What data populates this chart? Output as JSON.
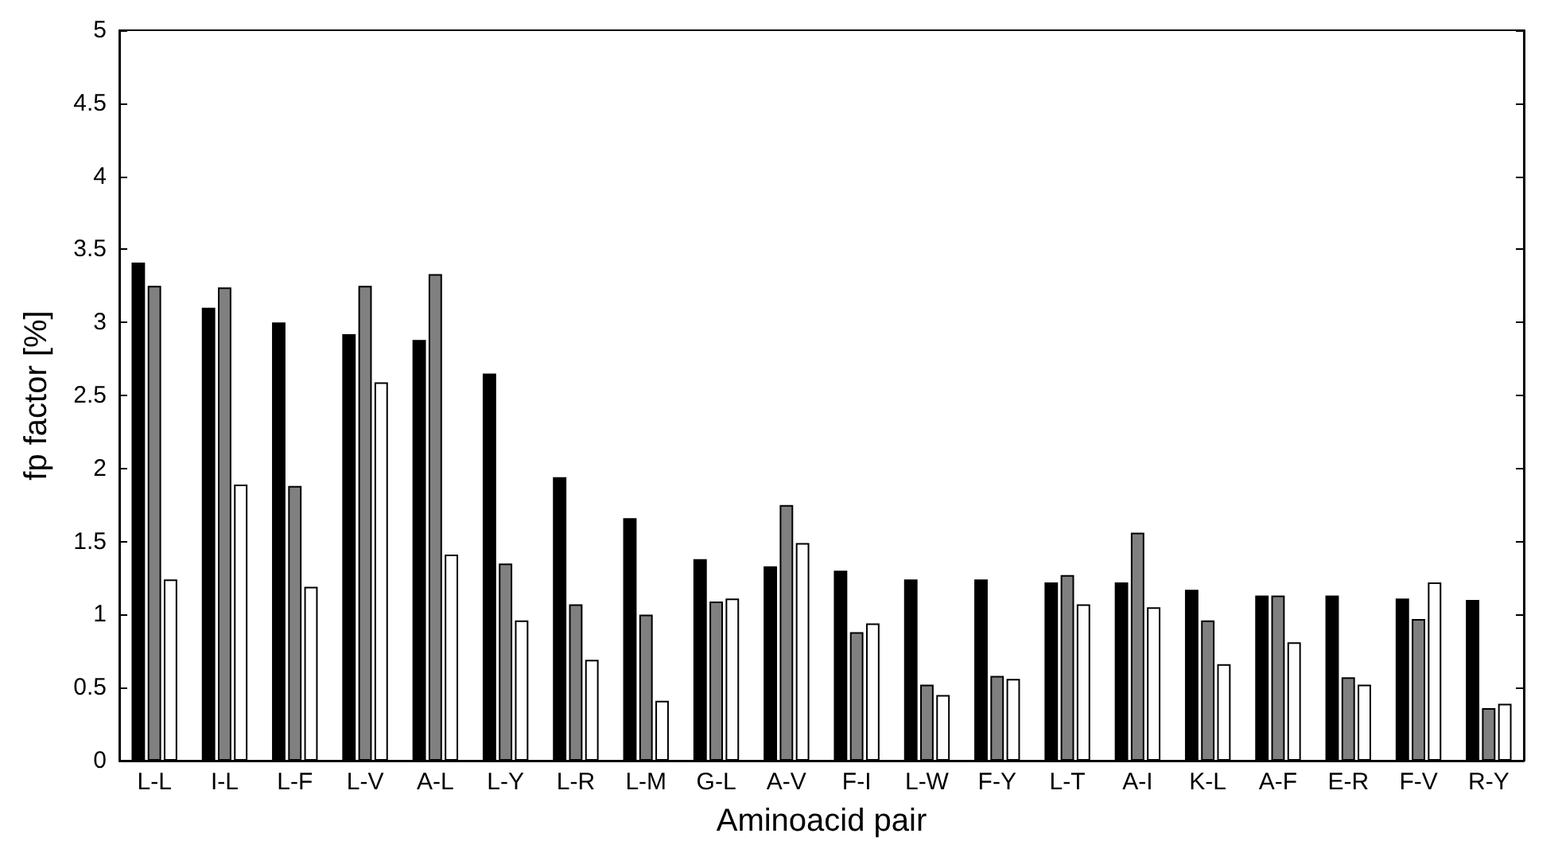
{
  "chart_data": {
    "type": "bar",
    "xlabel": "Aminoacid pair",
    "ylabel": "fp factor [%]",
    "categories": [
      "L-L",
      "I-L",
      "L-F",
      "L-V",
      "A-L",
      "L-Y",
      "L-R",
      "L-M",
      "G-L",
      "A-V",
      "F-I",
      "L-W",
      "F-Y",
      "L-T",
      "A-I",
      "K-L",
      "A-F",
      "E-R",
      "F-V",
      "R-Y"
    ],
    "series": [
      {
        "color": "#000000",
        "values": [
          3.41,
          3.1,
          3.0,
          2.92,
          2.88,
          2.65,
          1.94,
          1.66,
          1.38,
          1.33,
          1.3,
          1.24,
          1.24,
          1.22,
          1.22,
          1.17,
          1.13,
          1.13,
          1.11,
          1.1
        ]
      },
      {
        "color": "#808080",
        "values": [
          3.25,
          3.24,
          1.88,
          3.25,
          3.33,
          1.35,
          1.07,
          1.0,
          1.09,
          1.75,
          0.88,
          0.52,
          0.58,
          1.27,
          1.56,
          0.96,
          1.13,
          0.57,
          0.97,
          0.36
        ]
      },
      {
        "color": "#ffffff",
        "values": [
          1.24,
          1.89,
          1.19,
          2.59,
          1.41,
          0.96,
          0.69,
          0.41,
          1.11,
          1.49,
          0.94,
          0.45,
          0.56,
          1.07,
          1.05,
          0.66,
          0.81,
          0.52,
          1.22,
          0.39
        ]
      }
    ],
    "ylim": [
      0,
      5
    ],
    "yticks": [
      0,
      0.5,
      1,
      1.5,
      2,
      2.5,
      3,
      3.5,
      4,
      4.5,
      5
    ],
    "grid": false
  }
}
